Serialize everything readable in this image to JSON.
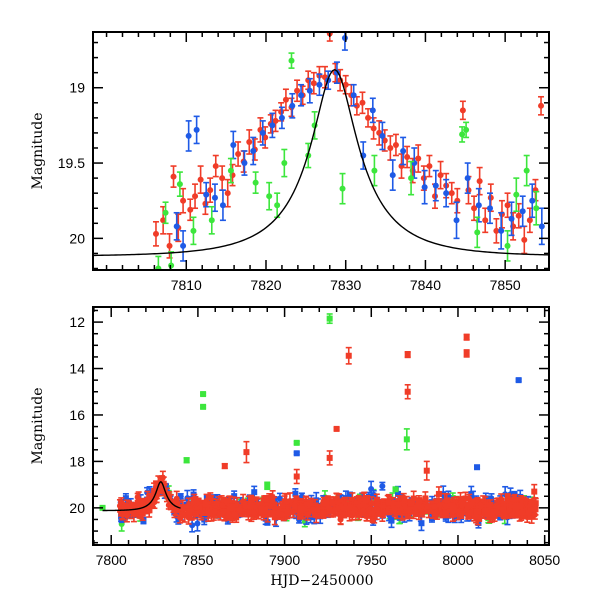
{
  "chart_data": [
    {
      "type": "scatter",
      "panel": "top",
      "title": "",
      "xlabel": "",
      "ylabel": "Magnitude",
      "xlim": [
        7798.3,
        7855.5
      ],
      "ylim": [
        20.21,
        18.63
      ],
      "y_inverted": true,
      "x_ticks": [
        7810,
        7820,
        7830,
        7840,
        7850
      ],
      "x_tick_labels": [
        "7810",
        "7820",
        "7830",
        "7840",
        "7850"
      ],
      "y_ticks": [
        19,
        19.5,
        20
      ],
      "y_tick_labels": [
        "19",
        "19.5",
        "20"
      ],
      "x_minor_step": 2,
      "y_minor_step": 0.1,
      "grid": false,
      "legend": "none",
      "model_curve": {
        "name": "model",
        "color": "#000000",
        "t0": 7828.6,
        "peak_mag": 18.88,
        "base_mag": 20.12,
        "tE": 9.5
      },
      "series": [
        {
          "name": "red",
          "color": "#f03c28",
          "x": [
            7806.2,
            7807.1,
            7807.9,
            7808.4,
            7809.0,
            7809.6,
            7810.5,
            7811.1,
            7811.8,
            7812.4,
            7813.0,
            7813.7,
            7814.5,
            7815.2,
            7815.8,
            7816.5,
            7817.2,
            7817.9,
            7818.6,
            7819.3,
            7819.9,
            7820.6,
            7821.2,
            7821.9,
            7822.5,
            7823.2,
            7823.9,
            7824.6,
            7825.3,
            7826.0,
            7826.7,
            7827.4,
            7828.0,
            7828.7,
            7829.3,
            7830.0,
            7830.7,
            7831.4,
            7832.1,
            7832.8,
            7833.5,
            7834.2,
            7834.9,
            7835.6,
            7836.3,
            7837.0,
            7837.7,
            7838.4,
            7839.1,
            7839.8,
            7840.5,
            7841.2,
            7841.9,
            7842.6,
            7843.3,
            7844.0,
            7844.7,
            7845.4,
            7846.1,
            7846.8,
            7847.5,
            7848.2,
            7848.9,
            7849.6,
            7850.3,
            7851.0,
            7851.7,
            7852.4,
            7853.1,
            7853.8,
            7854.5
          ],
          "y": [
            19.97,
            19.88,
            20.05,
            19.59,
            19.93,
            19.75,
            19.81,
            19.72,
            19.61,
            19.77,
            19.68,
            19.52,
            19.6,
            19.7,
            19.58,
            19.44,
            19.49,
            19.36,
            19.41,
            19.28,
            19.33,
            19.24,
            19.22,
            19.16,
            19.08,
            19.13,
            19.02,
            19.05,
            18.95,
            18.97,
            18.92,
            18.93,
            18.64,
            18.9,
            18.95,
            18.98,
            19.05,
            19.12,
            19.1,
            19.2,
            19.27,
            19.3,
            19.35,
            19.4,
            19.38,
            19.52,
            19.46,
            19.55,
            19.47,
            19.6,
            19.52,
            19.72,
            19.58,
            19.65,
            19.7,
            19.75,
            19.15,
            19.68,
            19.8,
            19.62,
            19.88,
            19.73,
            19.95,
            19.84,
            19.78,
            19.92,
            19.85,
            20.01,
            19.88,
            19.68,
            19.12
          ],
          "err": [
            0.08,
            0.09,
            0.08,
            0.07,
            0.09,
            0.08,
            0.07,
            0.08,
            0.09,
            0.07,
            0.08,
            0.07,
            0.08,
            0.09,
            0.07,
            0.08,
            0.07,
            0.08,
            0.07,
            0.08,
            0.07,
            0.06,
            0.07,
            0.06,
            0.07,
            0.06,
            0.07,
            0.06,
            0.06,
            0.07,
            0.06,
            0.07,
            0.05,
            0.06,
            0.07,
            0.06,
            0.07,
            0.06,
            0.07,
            0.06,
            0.07,
            0.08,
            0.07,
            0.08,
            0.07,
            0.08,
            0.07,
            0.08,
            0.09,
            0.08,
            0.07,
            0.08,
            0.09,
            0.08,
            0.07,
            0.08,
            0.06,
            0.09,
            0.08,
            0.09,
            0.08,
            0.09,
            0.08,
            0.09,
            0.08,
            0.09,
            0.08,
            0.09,
            0.08,
            0.07,
            0.06
          ]
        },
        {
          "name": "blue",
          "color": "#1e5ae6",
          "x": [
            7808.8,
            7809.6,
            7810.3,
            7811.3,
            7812.5,
            7813.6,
            7814.6,
            7815.9,
            7817.3,
            7818.4,
            7819.6,
            7820.8,
            7822.0,
            7823.3,
            7824.4,
            7825.5,
            7826.7,
            7827.8,
            7828.9,
            7829.9,
            7831.0,
            7832.2,
            7833.4,
            7834.6,
            7835.9,
            7837.2,
            7838.6,
            7839.9,
            7841.3,
            7842.6,
            7843.9,
            7845.3,
            7846.7,
            7848.1,
            7849.5,
            7850.8,
            7852.2,
            7853.4,
            7854.6
          ],
          "y": [
            19.92,
            20.05,
            19.32,
            19.28,
            19.71,
            19.73,
            19.78,
            19.38,
            19.5,
            19.42,
            19.3,
            19.25,
            19.2,
            19.12,
            19.05,
            19.02,
            18.98,
            18.95,
            18.9,
            18.67,
            19.05,
            19.45,
            19.15,
            19.32,
            19.58,
            19.42,
            19.5,
            19.66,
            19.65,
            19.7,
            19.88,
            19.6,
            19.78,
            19.8,
            19.95,
            19.87,
            19.82,
            19.75,
            19.92
          ],
          "err": [
            0.09,
            0.1,
            0.1,
            0.09,
            0.08,
            0.09,
            0.1,
            0.09,
            0.08,
            0.09,
            0.08,
            0.08,
            0.07,
            0.08,
            0.07,
            0.08,
            0.07,
            0.06,
            0.07,
            0.08,
            0.07,
            0.09,
            0.08,
            0.09,
            0.1,
            0.09,
            0.1,
            0.11,
            0.1,
            0.09,
            0.12,
            0.1,
            0.11,
            0.1,
            0.12,
            0.11,
            0.1,
            0.11,
            0.12
          ]
        },
        {
          "name": "green",
          "color": "#3ce63c",
          "x": [
            7806.5,
            7807.4,
            7808.1,
            7809.2,
            7810.9,
            7813.2,
            7815.6,
            7818.7,
            7820.4,
            7821.4,
            7822.3,
            7823.2,
            7825.3,
            7826.1,
            7829.6,
            7833.6,
            7838.2,
            7844.6,
            7845.1,
            7846.5,
            7850.3,
            7851.4,
            7852.7,
            7853.9
          ],
          "y": [
            20.2,
            19.83,
            20.18,
            19.64,
            19.95,
            19.88,
            19.55,
            19.63,
            19.72,
            19.78,
            19.5,
            18.82,
            19.45,
            19.25,
            19.67,
            19.55,
            19.6,
            19.31,
            19.28,
            19.96,
            20.05,
            19.71,
            19.55,
            19.8
          ],
          "err": [
            0.08,
            0.07,
            0.09,
            0.08,
            0.09,
            0.09,
            0.08,
            0.07,
            0.09,
            0.08,
            0.09,
            0.05,
            0.08,
            0.09,
            0.1,
            0.1,
            0.11,
            0.05,
            0.05,
            0.1,
            0.1,
            0.11,
            0.1,
            0.11
          ]
        }
      ]
    },
    {
      "type": "scatter",
      "panel": "bottom",
      "title": "",
      "xlabel": "HJD−2450000",
      "ylabel": "Magnitude",
      "xlim": [
        7789.5,
        8052.5
      ],
      "ylim": [
        21.6,
        11.35
      ],
      "y_inverted": true,
      "x_ticks": [
        7800,
        7850,
        7900,
        7950,
        8000,
        8050
      ],
      "x_tick_labels": [
        "7800",
        "7850",
        "7900",
        "7950",
        "8000",
        "8050"
      ],
      "y_ticks": [
        12,
        14,
        16,
        18,
        20
      ],
      "y_tick_labels": [
        "12",
        "14",
        "16",
        "18",
        "20"
      ],
      "x_minor_step": 10,
      "y_minor_step": 0.5,
      "grid": false,
      "legend": "none",
      "model_curve": {
        "name": "model",
        "color": "#000000",
        "t0": 7828.6,
        "peak_mag": 18.88,
        "base_mag": 20.12,
        "tE": 9.5,
        "xrange": [
          7795,
          7840
        ]
      },
      "dense_band": {
        "x_range": [
          7805,
          8045
        ],
        "baseline_mag": 20.0,
        "scatter_mag": 0.35,
        "description": "dense overlapping red/blue/green points around baseline"
      },
      "outliers": [
        {
          "series": "green",
          "x": 7795.0,
          "y": 20.0,
          "err": 0.05
        },
        {
          "series": "green",
          "x": 7926.0,
          "y": 11.85,
          "err": 0.2
        },
        {
          "series": "red",
          "x": 7937.0,
          "y": 13.45,
          "err": 0.35
        },
        {
          "series": "red",
          "x": 7971.0,
          "y": 13.4,
          "err": 0.12
        },
        {
          "series": "red",
          "x": 7971.0,
          "y": 15.0,
          "err": 0.3
        },
        {
          "series": "red",
          "x": 8005.0,
          "y": 12.65,
          "err": 0.12
        },
        {
          "series": "red",
          "x": 8005.0,
          "y": 13.35,
          "err": 0.15
        },
        {
          "series": "blue",
          "x": 8035.0,
          "y": 14.5,
          "err": 0.05
        },
        {
          "series": "green",
          "x": 7853.0,
          "y": 15.1,
          "err": 0.05
        },
        {
          "series": "green",
          "x": 7853.0,
          "y": 15.65,
          "err": 0.05
        },
        {
          "series": "red",
          "x": 7930.0,
          "y": 16.6,
          "err": 0.05
        },
        {
          "series": "green",
          "x": 7970.5,
          "y": 17.05,
          "err": 0.45
        },
        {
          "series": "green",
          "x": 7907.0,
          "y": 17.2,
          "err": 0.05
        },
        {
          "series": "blue",
          "x": 7907.0,
          "y": 17.65,
          "err": 0.05
        },
        {
          "series": "red",
          "x": 7878.0,
          "y": 17.6,
          "err": 0.45
        },
        {
          "series": "green",
          "x": 7843.5,
          "y": 17.95,
          "err": 0.1
        },
        {
          "series": "red",
          "x": 7865.5,
          "y": 18.2,
          "err": 0.1
        },
        {
          "series": "red",
          "x": 7926.0,
          "y": 17.85,
          "err": 0.3
        },
        {
          "series": "red",
          "x": 7907.0,
          "y": 18.65,
          "err": 0.3
        },
        {
          "series": "blue",
          "x": 8011.0,
          "y": 18.25,
          "err": 0.05
        },
        {
          "series": "red",
          "x": 7982.0,
          "y": 18.4,
          "err": 0.4
        },
        {
          "series": "green",
          "x": 7890.0,
          "y": 19.05,
          "err": 0.15
        },
        {
          "series": "green",
          "x": 7964.0,
          "y": 19.2,
          "err": 0.05
        },
        {
          "series": "red",
          "x": 7989.0,
          "y": 19.4,
          "err": 0.3
        },
        {
          "series": "red",
          "x": 8044.0,
          "y": 19.3,
          "err": 0.3
        }
      ],
      "series_colors": {
        "red": "#f03c28",
        "blue": "#1e5ae6",
        "green": "#3ce63c"
      }
    }
  ],
  "labels": {
    "top_ylabel": "Magnitude",
    "bottom_ylabel": "Magnitude",
    "bottom_xlabel": "HJD−2450000"
  }
}
